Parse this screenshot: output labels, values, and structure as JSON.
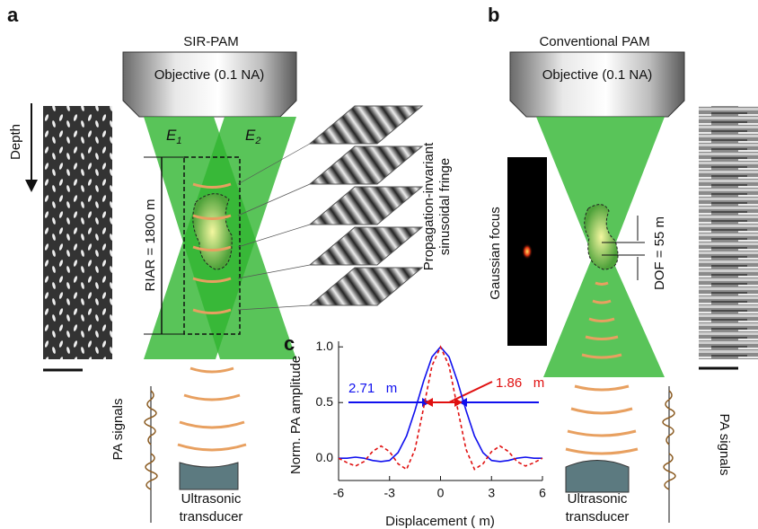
{
  "panel_a": {
    "label": "a",
    "title": "SIR-PAM",
    "objective": "Objective (0.1 NA)",
    "beams": [
      {
        "letter": "E",
        "sub": "1"
      },
      {
        "letter": "E",
        "sub": "2"
      }
    ],
    "depth": "Depth",
    "riar": "RIAR = 1800   m",
    "fringe_label": [
      "Propagation-invariant",
      "sinusoidal fringe"
    ],
    "signal": "PA signals",
    "transducer": [
      "Ultrasonic",
      "transducer"
    ]
  },
  "panel_b": {
    "label": "b",
    "title": "Conventional PAM",
    "objective": "Objective (0.1 NA)",
    "focus_label": "Gaussian focus",
    "dof": "DOF = 55   m",
    "signal": "PA signals",
    "transducer": [
      "Ultrasonic",
      "transducer"
    ]
  },
  "chart_data": {
    "type": "line",
    "label": "c",
    "y_label": "Norm. PA amplitude",
    "x_label": "Displacement (  m)",
    "x": [
      -6,
      -5.5,
      -5,
      -4.5,
      -4,
      -3.5,
      -3,
      -2.5,
      -2,
      -1.5,
      -1,
      -0.5,
      0,
      0.5,
      1,
      1.5,
      2,
      2.5,
      3,
      3.5,
      4,
      4.5,
      5,
      5.5,
      6
    ],
    "series": [
      {
        "color": "#1010ee",
        "dash": "solid",
        "values": [
          0,
          0,
          0.01,
          0,
          -0.02,
          -0.03,
          -0.02,
          0.05,
          0.2,
          0.43,
          0.69,
          0.91,
          1,
          0.91,
          0.69,
          0.43,
          0.2,
          0.05,
          -0.02,
          -0.03,
          -0.02,
          0,
          0.01,
          0,
          0
        ]
      },
      {
        "color": "#e01010",
        "dash": "dashed",
        "values": [
          0,
          -0.04,
          -0.07,
          -0.03,
          0.06,
          0.11,
          0.06,
          -0.05,
          -0.1,
          0.08,
          0.45,
          0.83,
          1,
          0.83,
          0.45,
          0.08,
          -0.1,
          -0.05,
          0.06,
          0.11,
          0.06,
          -0.03,
          -0.07,
          -0.04,
          0
        ]
      }
    ],
    "xlim": [
      -6,
      6
    ],
    "xticks": [
      -6,
      -3,
      0,
      3,
      6
    ],
    "ylim": [
      -0.2,
      1.05
    ],
    "yticks": [
      {
        "value": 0,
        "label": "0.0"
      },
      {
        "value": 0.5,
        "label": "0.5"
      },
      {
        "value": 1,
        "label": "1.0"
      }
    ],
    "annotations": [
      "2.71   m",
      "1.86   m"
    ]
  }
}
